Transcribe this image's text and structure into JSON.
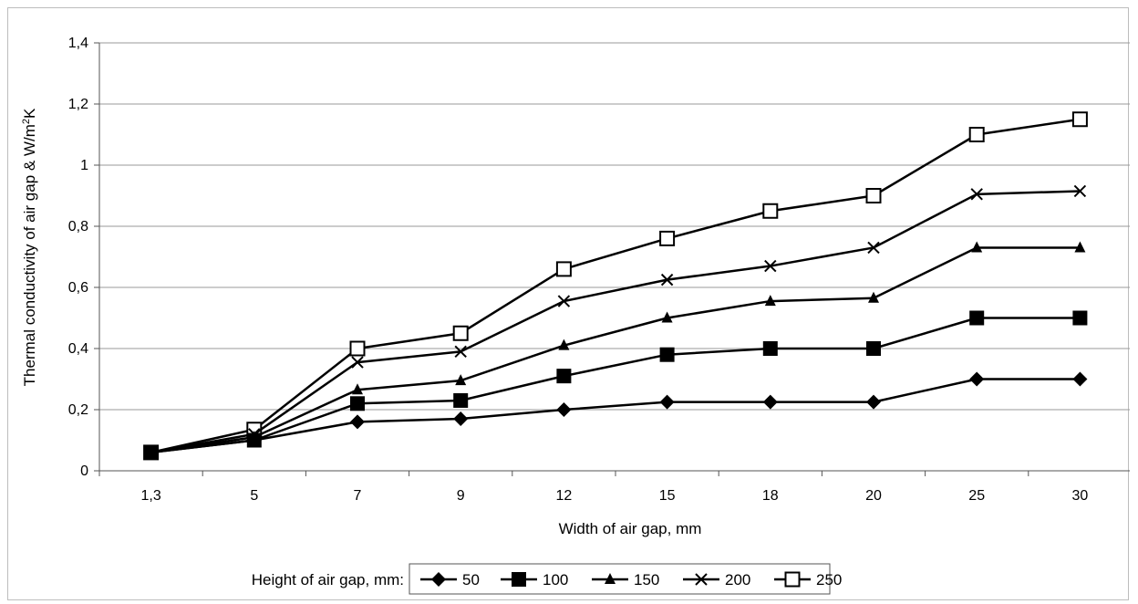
{
  "chart_data": {
    "type": "line",
    "categories": [
      "1,3",
      "5",
      "7",
      "9",
      "12",
      "15",
      "18",
      "20",
      "25",
      "30"
    ],
    "y_ticks": [
      "0",
      "0,2",
      "0,4",
      "0,6",
      "0,8",
      "1",
      "1,2",
      "1,4"
    ],
    "ylim": [
      0,
      1.4
    ],
    "xlabel": "Width of air gap, mm",
    "ylabel": "Thermal conductivity of air gap & W/m²K",
    "grid": "horizontal",
    "legend_title": "Height of air gap, mm:",
    "legend_position": "bottom",
    "series": [
      {
        "name": "50",
        "marker": "diamond",
        "values": [
          0.06,
          0.1,
          0.16,
          0.17,
          0.2,
          0.225,
          0.225,
          0.225,
          0.3,
          0.3
        ]
      },
      {
        "name": "100",
        "marker": "square",
        "values": [
          0.06,
          0.1,
          0.22,
          0.23,
          0.31,
          0.38,
          0.4,
          0.4,
          0.5,
          0.5
        ]
      },
      {
        "name": "150",
        "marker": "triangle",
        "values": [
          0.06,
          0.11,
          0.265,
          0.295,
          0.41,
          0.5,
          0.555,
          0.565,
          0.73,
          0.73
        ]
      },
      {
        "name": "200",
        "marker": "x",
        "values": [
          0.06,
          0.12,
          0.355,
          0.39,
          0.555,
          0.625,
          0.67,
          0.73,
          0.905,
          0.915
        ]
      },
      {
        "name": "250",
        "marker": "open-square",
        "values": [
          0.06,
          0.135,
          0.4,
          0.45,
          0.66,
          0.76,
          0.85,
          0.9,
          1.1,
          1.15
        ]
      }
    ]
  }
}
